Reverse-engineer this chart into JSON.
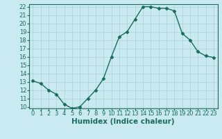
{
  "x": [
    0,
    1,
    2,
    3,
    4,
    5,
    6,
    7,
    8,
    9,
    10,
    11,
    12,
    13,
    14,
    15,
    16,
    17,
    18,
    19,
    20,
    21,
    22,
    23
  ],
  "y": [
    13.1,
    12.8,
    12.0,
    11.5,
    10.3,
    9.8,
    10.0,
    11.0,
    12.0,
    13.4,
    16.0,
    18.4,
    19.0,
    20.5,
    22.0,
    22.0,
    21.8,
    21.8,
    21.5,
    18.8,
    18.0,
    16.6,
    16.1,
    15.9
  ],
  "line_color": "#1a6b5a",
  "marker_color": "#1a6b5a",
  "bg_color": "#c8eaf0",
  "grid_color": "#b0d0d8",
  "xlabel": "Humidex (Indice chaleur)",
  "ylim_min": 10,
  "ylim_max": 22,
  "xlim_min": 0,
  "xlim_max": 23,
  "yticks": [
    10,
    11,
    12,
    13,
    14,
    15,
    16,
    17,
    18,
    19,
    20,
    21,
    22
  ],
  "xticks": [
    0,
    1,
    2,
    3,
    4,
    5,
    6,
    7,
    8,
    9,
    10,
    11,
    12,
    13,
    14,
    15,
    16,
    17,
    18,
    19,
    20,
    21,
    22,
    23
  ],
  "xlabel_fontsize": 7.5,
  "tick_fontsize": 6.0,
  "line_width": 1.0,
  "marker_size": 2.5
}
